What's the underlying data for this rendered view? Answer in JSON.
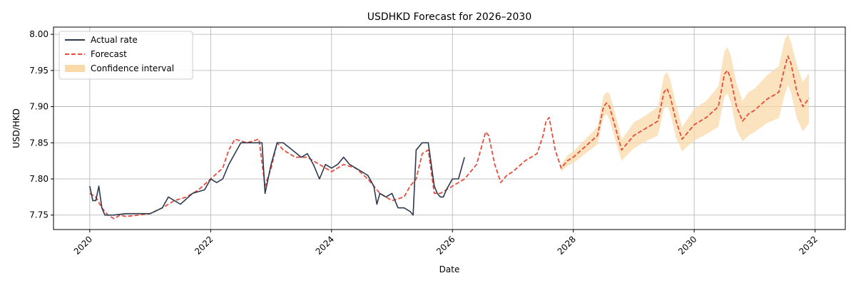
{
  "chart_data": {
    "type": "line",
    "title": "USDHKD Forecast for 2026–2030",
    "xlabel": "Date",
    "ylabel": "USD/HKD",
    "xlim": [
      2019.4,
      2032.5
    ],
    "ylim": [
      7.73,
      8.01
    ],
    "x_ticks": [
      2020,
      2022,
      2024,
      2026,
      2028,
      2030,
      2032
    ],
    "x_tick_labels": [
      "2020",
      "2022",
      "2024",
      "2026",
      "2028",
      "2030",
      "2032"
    ],
    "y_ticks": [
      7.75,
      7.8,
      7.85,
      7.9,
      7.95,
      8.0
    ],
    "y_tick_labels": [
      "7.75",
      "7.80",
      "7.85",
      "7.90",
      "7.95",
      "8.00"
    ],
    "grid": true,
    "legend_position": "top-left",
    "colors": {
      "actual": "#2b3a4e",
      "forecast": "#e74c3c",
      "ci": "#f8d9a8"
    },
    "series": [
      {
        "name": "Actual rate",
        "style": "solid",
        "x": [
          2020.0,
          2020.05,
          2020.1,
          2020.15,
          2020.2,
          2020.25,
          2020.3,
          2020.4,
          2020.6,
          2020.8,
          2021.0,
          2021.2,
          2021.3,
          2021.5,
          2021.7,
          2021.9,
          2022.0,
          2022.1,
          2022.2,
          2022.3,
          2022.5,
          2022.7,
          2022.8,
          2022.85,
          2022.9,
          2023.0,
          2023.1,
          2023.2,
          2023.35,
          2023.5,
          2023.6,
          2023.7,
          2023.8,
          2023.9,
          2024.0,
          2024.1,
          2024.2,
          2024.3,
          2024.4,
          2024.5,
          2024.6,
          2024.7,
          2024.75,
          2024.8,
          2024.9,
          2025.0,
          2025.1,
          2025.2,
          2025.3,
          2025.35,
          2025.4,
          2025.5,
          2025.6,
          2025.7,
          2025.75,
          2025.8,
          2025.85,
          2025.9,
          2026.0,
          2026.1,
          2026.2
        ],
        "y": [
          7.79,
          7.77,
          7.77,
          7.79,
          7.76,
          7.75,
          7.75,
          7.75,
          7.752,
          7.752,
          7.752,
          7.76,
          7.775,
          7.765,
          7.78,
          7.785,
          7.8,
          7.795,
          7.8,
          7.82,
          7.85,
          7.85,
          7.85,
          7.85,
          7.78,
          7.82,
          7.85,
          7.85,
          7.84,
          7.83,
          7.835,
          7.82,
          7.8,
          7.82,
          7.815,
          7.82,
          7.83,
          7.82,
          7.815,
          7.81,
          7.805,
          7.79,
          7.765,
          7.78,
          7.775,
          7.78,
          7.76,
          7.76,
          7.755,
          7.75,
          7.84,
          7.85,
          7.85,
          7.79,
          7.78,
          7.775,
          7.775,
          7.785,
          7.8,
          7.8,
          7.83
        ]
      },
      {
        "name": "Forecast",
        "style": "dashed",
        "x": [
          2020.0,
          2020.1,
          2020.2,
          2020.3,
          2020.4,
          2020.5,
          2020.6,
          2020.8,
          2021.0,
          2021.2,
          2021.4,
          2021.6,
          2021.8,
          2022.0,
          2022.2,
          2022.3,
          2022.4,
          2022.6,
          2022.8,
          2022.9,
          2023.0,
          2023.1,
          2023.2,
          2023.4,
          2023.6,
          2023.8,
          2024.0,
          2024.2,
          2024.4,
          2024.6,
          2024.8,
          2025.0,
          2025.2,
          2025.3,
          2025.4,
          2025.5,
          2025.6,
          2025.7,
          2025.8,
          2025.9,
          2026.0,
          2026.2,
          2026.4,
          2026.5,
          2026.55,
          2026.6,
          2026.7,
          2026.8,
          2026.9,
          2027.0,
          2027.2,
          2027.4,
          2027.5,
          2027.55,
          2027.6,
          2027.7,
          2027.8,
          2027.9,
          2028.0,
          2028.2,
          2028.4,
          2028.5,
          2028.55,
          2028.6,
          2028.7,
          2028.8,
          2028.9,
          2029.0,
          2029.2,
          2029.4,
          2029.5,
          2029.55,
          2029.6,
          2029.7,
          2029.8,
          2029.9,
          2030.0,
          2030.2,
          2030.4,
          2030.5,
          2030.55,
          2030.6,
          2030.7,
          2030.8,
          2030.9,
          2031.0,
          2031.2,
          2031.4,
          2031.5,
          2031.55,
          2031.6,
          2031.7,
          2031.8,
          2031.9
        ],
        "y": [
          7.78,
          7.775,
          7.76,
          7.75,
          7.745,
          7.75,
          7.748,
          7.75,
          7.752,
          7.76,
          7.77,
          7.775,
          7.785,
          7.8,
          7.815,
          7.84,
          7.855,
          7.85,
          7.855,
          7.79,
          7.815,
          7.85,
          7.84,
          7.83,
          7.83,
          7.82,
          7.81,
          7.82,
          7.815,
          7.8,
          7.78,
          7.77,
          7.775,
          7.79,
          7.8,
          7.835,
          7.84,
          7.78,
          7.78,
          7.785,
          7.79,
          7.8,
          7.82,
          7.85,
          7.865,
          7.86,
          7.82,
          7.795,
          7.805,
          7.81,
          7.825,
          7.835,
          7.86,
          7.88,
          7.885,
          7.84,
          7.815,
          7.825,
          7.83,
          7.845,
          7.86,
          7.9,
          7.905,
          7.9,
          7.87,
          7.84,
          7.85,
          7.86,
          7.87,
          7.88,
          7.92,
          7.925,
          7.915,
          7.88,
          7.855,
          7.865,
          7.875,
          7.885,
          7.9,
          7.945,
          7.95,
          7.94,
          7.9,
          7.88,
          7.89,
          7.895,
          7.91,
          7.92,
          7.955,
          7.97,
          7.96,
          7.92,
          7.9,
          7.912
        ]
      }
    ],
    "confidence_interval": {
      "name": "Confidence interval",
      "x": [
        2027.8,
        2027.9,
        2028.0,
        2028.2,
        2028.4,
        2028.5,
        2028.55,
        2028.6,
        2028.7,
        2028.8,
        2028.9,
        2029.0,
        2029.2,
        2029.4,
        2029.5,
        2029.55,
        2029.6,
        2029.7,
        2029.8,
        2029.9,
        2030.0,
        2030.2,
        2030.4,
        2030.5,
        2030.55,
        2030.6,
        2030.7,
        2030.8,
        2030.9,
        2031.0,
        2031.2,
        2031.4,
        2031.5,
        2031.55,
        2031.6,
        2031.7,
        2031.8,
        2031.9
      ],
      "lower": [
        7.81,
        7.818,
        7.822,
        7.835,
        7.848,
        7.885,
        7.89,
        7.882,
        7.852,
        7.825,
        7.834,
        7.842,
        7.852,
        7.86,
        7.897,
        7.902,
        7.892,
        7.857,
        7.838,
        7.846,
        7.853,
        7.862,
        7.872,
        7.914,
        7.918,
        7.908,
        7.868,
        7.852,
        7.86,
        7.865,
        7.877,
        7.884,
        7.917,
        7.93,
        7.92,
        7.883,
        7.866,
        7.877
      ],
      "upper": [
        7.82,
        7.832,
        7.838,
        7.855,
        7.872,
        7.915,
        7.92,
        7.918,
        7.888,
        7.855,
        7.866,
        7.878,
        7.888,
        7.9,
        7.943,
        7.948,
        7.938,
        7.903,
        7.872,
        7.884,
        7.897,
        7.908,
        7.928,
        7.976,
        7.982,
        7.972,
        7.932,
        7.908,
        7.92,
        7.925,
        7.943,
        7.956,
        7.993,
        8.0,
        7.99,
        7.957,
        7.934,
        7.947
      ]
    }
  },
  "legend": {
    "actual_label": "Actual rate",
    "forecast_label": "Forecast",
    "ci_label": "Confidence interval"
  }
}
